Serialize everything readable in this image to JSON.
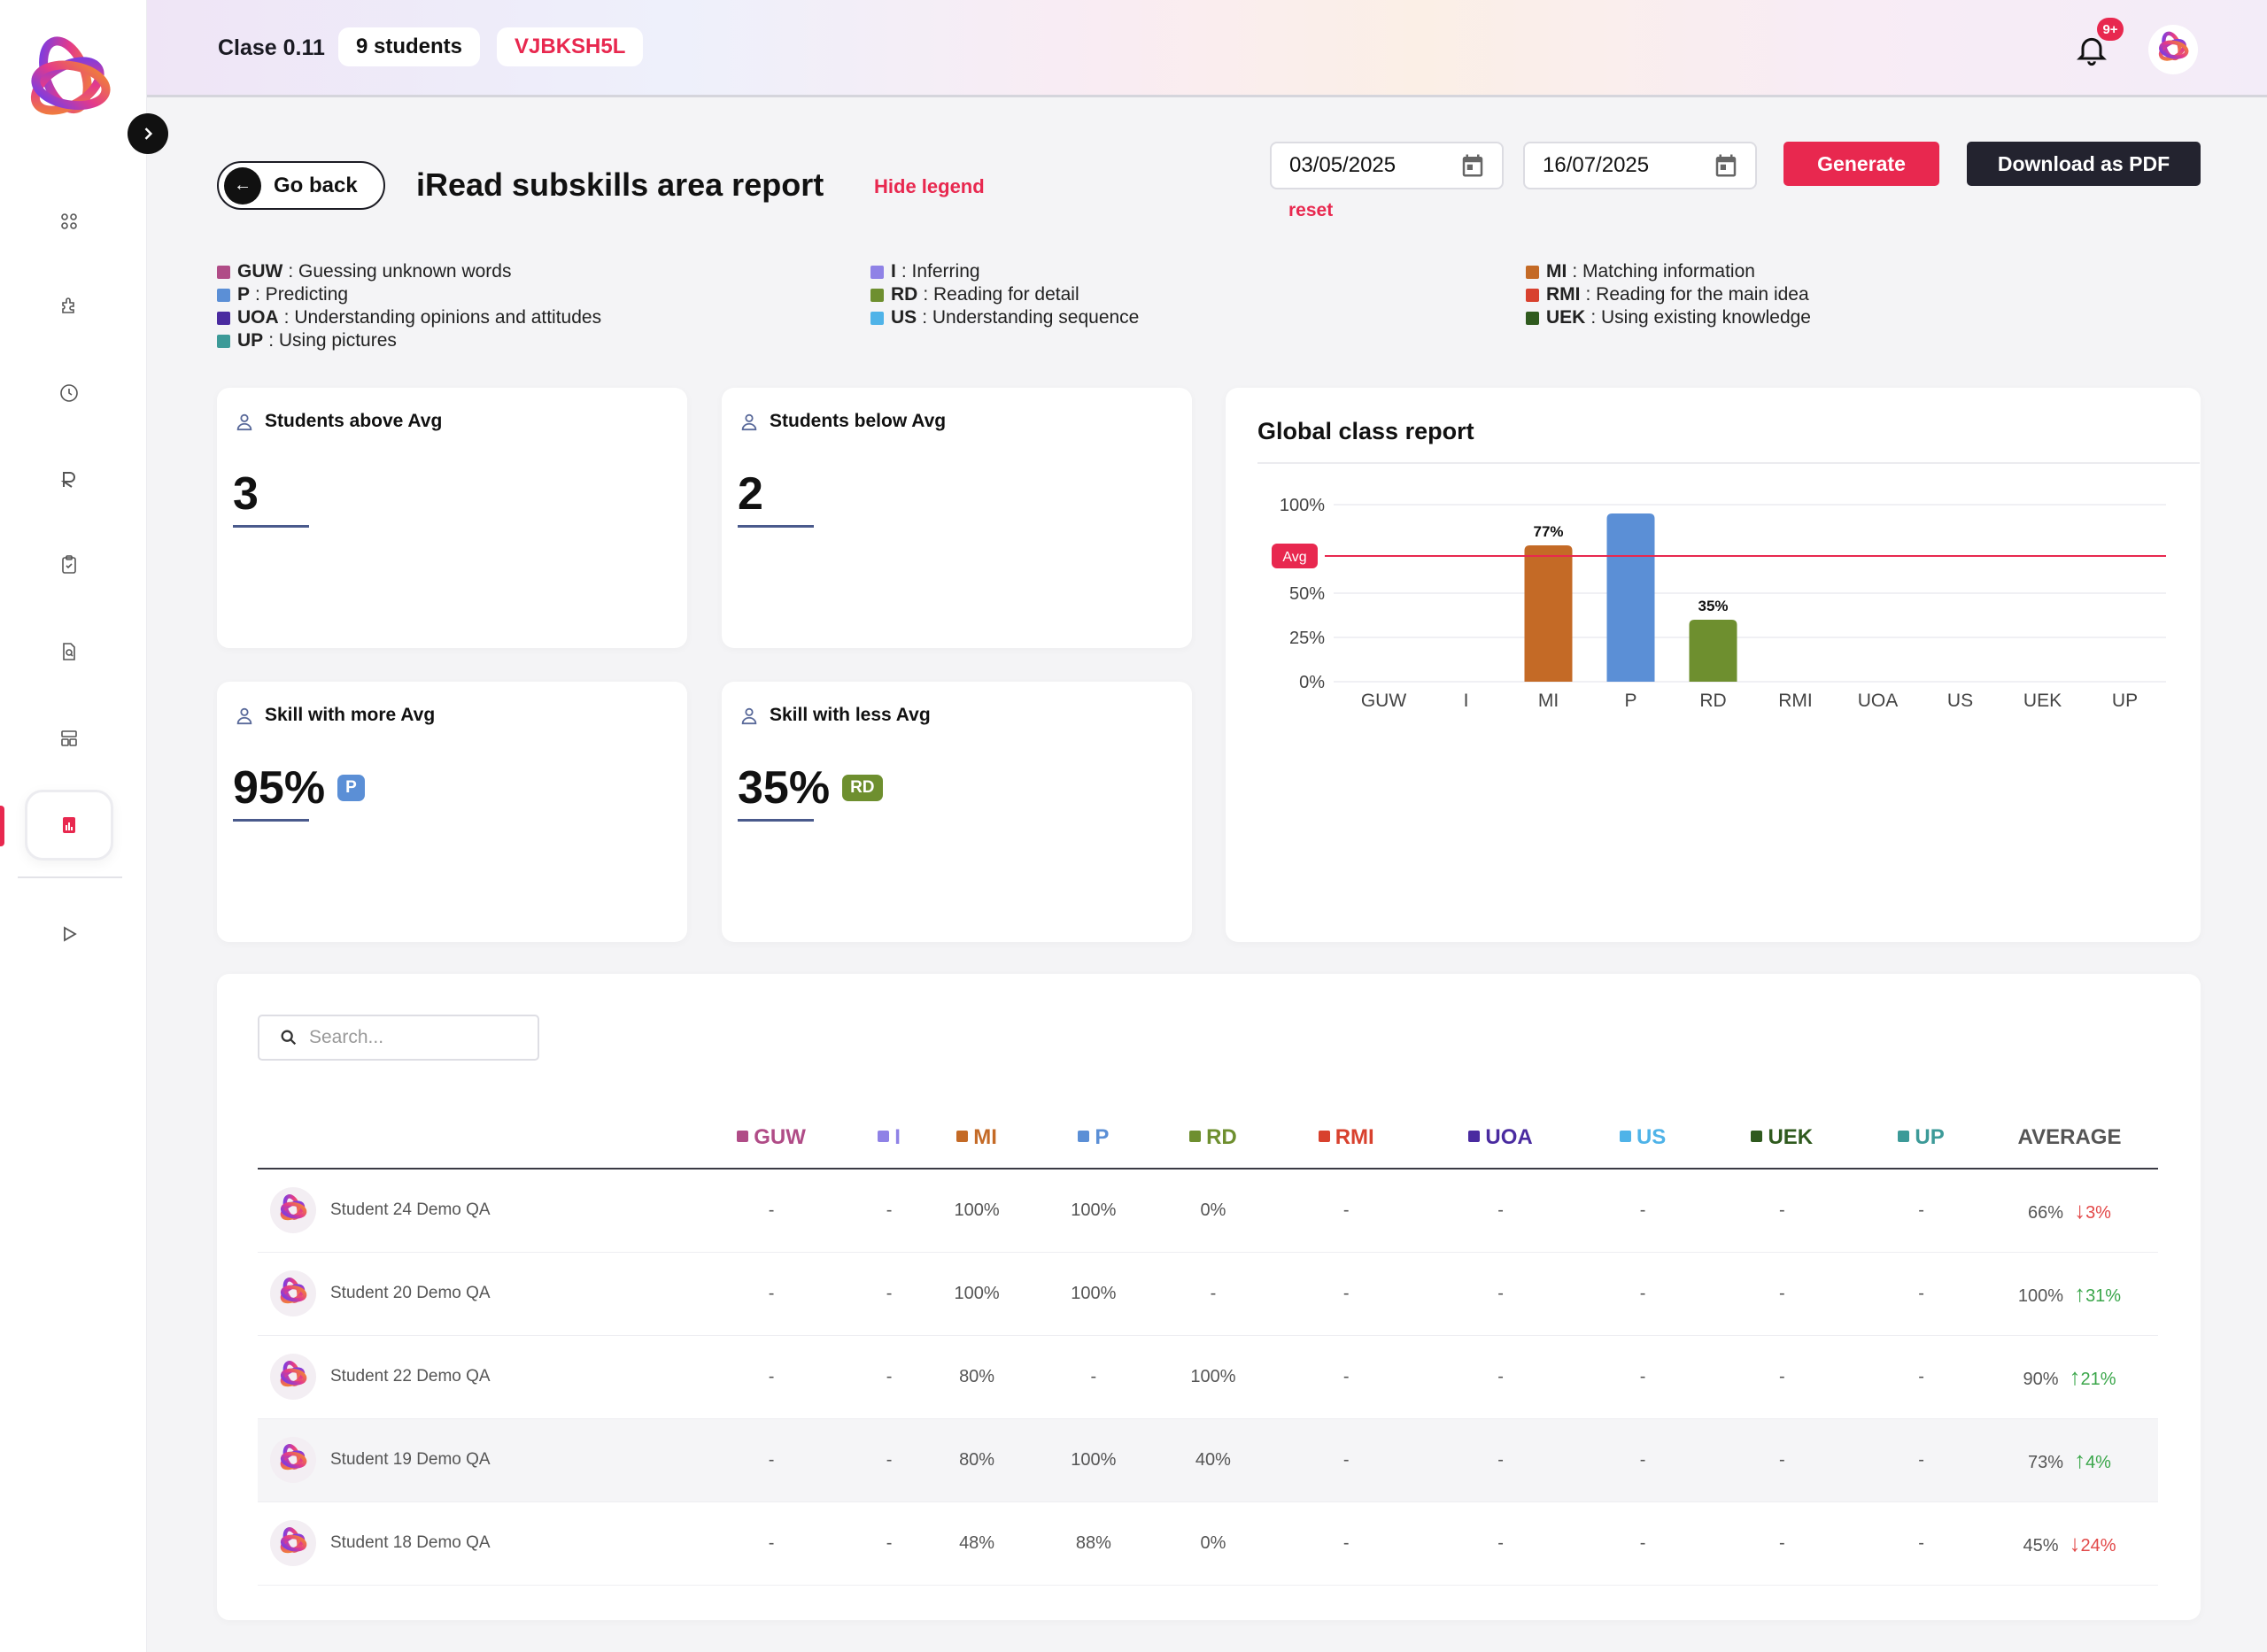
{
  "topbar": {
    "class_name": "Clase 0.11",
    "students_pill": "9 students",
    "class_code": "VJBKSH5L",
    "notification_badge": "9+"
  },
  "header": {
    "go_back": "Go back",
    "title": "iRead subskills area report",
    "hide_legend": "Hide legend",
    "start_date": "03/05/2025",
    "end_date": "16/07/2025",
    "reset": "reset",
    "generate": "Generate",
    "download_pdf": "Download as PDF"
  },
  "legend": [
    {
      "code": "GUW",
      "desc": ": Guessing unknown words",
      "color": "#b04c87"
    },
    {
      "code": "P",
      "desc": ": Predicting",
      "color": "#5b8fd6"
    },
    {
      "code": "UOA",
      "desc": ": Understanding opinions and attitudes",
      "color": "#4a2ba0"
    },
    {
      "code": "UP",
      "desc": ": Using pictures",
      "color": "#3c9a98"
    },
    {
      "code": "I",
      "desc": ": Inferring",
      "color": "#8f82e6"
    },
    {
      "code": "RD",
      "desc": ": Reading for detail",
      "color": "#6e8f2f"
    },
    {
      "code": "US",
      "desc": ": Understanding sequence",
      "color": "#4fb3e8"
    },
    {
      "code": "MI",
      "desc": ": Matching information",
      "color": "#c46a26"
    },
    {
      "code": "RMI",
      "desc": ": Reading for the main idea",
      "color": "#d8412e"
    },
    {
      "code": "UEK",
      "desc": ": Using existing knowledge",
      "color": "#2f5a1e"
    }
  ],
  "stats": {
    "above": {
      "label": "Students above Avg",
      "value": "3"
    },
    "below": {
      "label": "Students below Avg",
      "value": "2"
    },
    "more": {
      "label": "Skill with more Avg",
      "value": "95%",
      "tag": "P",
      "tag_color": "#5b8fd6"
    },
    "less": {
      "label": "Skill with less Avg",
      "value": "35%",
      "tag": "RD",
      "tag_color": "#6e8f2f"
    }
  },
  "chart_data": {
    "type": "bar",
    "title": "Global class report",
    "categories": [
      "GUW",
      "I",
      "MI",
      "P",
      "RD",
      "RMI",
      "UOA",
      "US",
      "UEK",
      "UP"
    ],
    "values": [
      null,
      null,
      77,
      95,
      35,
      null,
      null,
      null,
      null,
      null
    ],
    "colors": [
      "#b04c87",
      "#8f82e6",
      "#c46a26",
      "#5b8fd6",
      "#6e8f2f",
      "#d8412e",
      "#4a2ba0",
      "#4fb3e8",
      "#2f5a1e",
      "#3c9a98"
    ],
    "data_labels": [
      "",
      "",
      "77%",
      "",
      "35%",
      "",
      "",
      "",
      "",
      ""
    ],
    "ytick_labels": [
      "0%",
      "25%",
      "50%",
      "100%"
    ],
    "avg_line": 71,
    "avg_label": "Avg",
    "ylim": [
      0,
      100
    ],
    "grid": true
  },
  "table": {
    "search_placeholder": "Search...",
    "columns": [
      {
        "code": "GUW",
        "color": "#b04c87"
      },
      {
        "code": "I",
        "color": "#8f82e6"
      },
      {
        "code": "MI",
        "color": "#c46a26"
      },
      {
        "code": "P",
        "color": "#5b8fd6"
      },
      {
        "code": "RD",
        "color": "#6e8f2f"
      },
      {
        "code": "RMI",
        "color": "#d8412e"
      },
      {
        "code": "UOA",
        "color": "#4a2ba0"
      },
      {
        "code": "US",
        "color": "#4fb3e8"
      },
      {
        "code": "UEK",
        "color": "#2f5a1e"
      },
      {
        "code": "UP",
        "color": "#3c9a98"
      }
    ],
    "average_header": "AVERAGE",
    "rows": [
      {
        "name": "Student 24 Demo QA",
        "scores": [
          "-",
          "-",
          "100%",
          "100%",
          "0%",
          "-",
          "-",
          "-",
          "-",
          "-"
        ],
        "average": "66%",
        "trend": "down",
        "delta": "3%"
      },
      {
        "name": "Student 20 Demo QA",
        "scores": [
          "-",
          "-",
          "100%",
          "100%",
          "-",
          "-",
          "-",
          "-",
          "-",
          "-"
        ],
        "average": "100%",
        "trend": "up",
        "delta": "31%"
      },
      {
        "name": "Student 22 Demo QA",
        "scores": [
          "-",
          "-",
          "80%",
          "-",
          "100%",
          "-",
          "-",
          "-",
          "-",
          "-"
        ],
        "average": "90%",
        "trend": "up",
        "delta": "21%"
      },
      {
        "name": "Student 19 Demo QA",
        "scores": [
          "-",
          "-",
          "80%",
          "100%",
          "40%",
          "-",
          "-",
          "-",
          "-",
          "-"
        ],
        "average": "73%",
        "trend": "up",
        "delta": "4%"
      },
      {
        "name": "Student 18 Demo QA",
        "scores": [
          "-",
          "-",
          "48%",
          "88%",
          "0%",
          "-",
          "-",
          "-",
          "-",
          "-"
        ],
        "average": "45%",
        "trend": "down",
        "delta": "24%"
      }
    ]
  }
}
